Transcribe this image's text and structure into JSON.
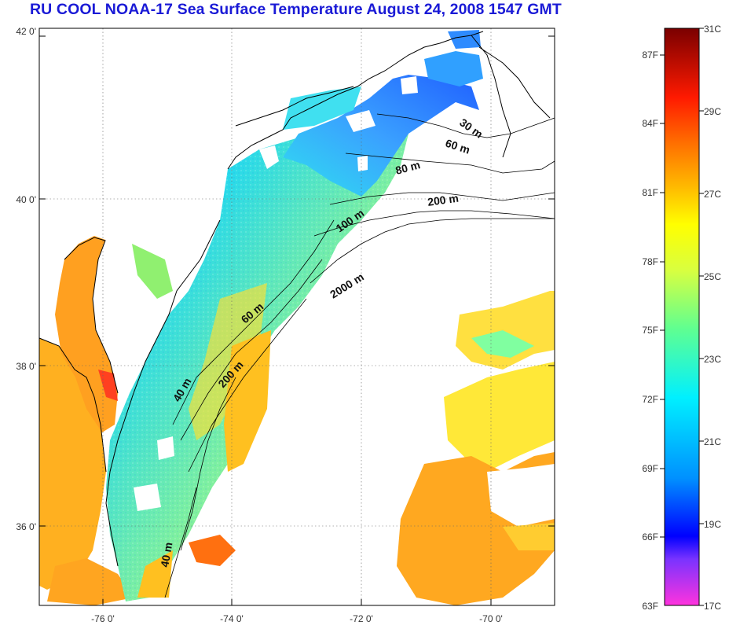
{
  "title": "RU COOL  NOAA-17 Sea Surface Temperature August 24, 2008 1547 GMT",
  "lat_labels": [
    "42 0'",
    "40 0'",
    "38 0'",
    "36 0'"
  ],
  "lon_labels": [
    "-76 0'",
    "-74 0'",
    "-72 0'",
    "-70 0'"
  ],
  "isobaths": {
    "i30": "30 m",
    "i60a": "60 m",
    "i80": "80 m",
    "i200a": "200 m",
    "i100": "100 m",
    "i2000": "2000 m",
    "i60b": "60 m",
    "i200b": "200 m",
    "i40a": "40 m",
    "i40b": "40 m"
  },
  "colorbar": {
    "c31": "31C",
    "c29": "29C",
    "c27": "27C",
    "c25": "25C",
    "c23": "23C",
    "c21": "21C",
    "c19": "19C",
    "c17": "17C",
    "f87": "87F",
    "f84": "84F",
    "f81": "81F",
    "f78": "78F",
    "f75": "75F",
    "f72": "72F",
    "f69": "69F",
    "f66": "66F",
    "f63": "63F"
  },
  "colors": {
    "title": "#1a1ad6",
    "scale": [
      "#ff33dd",
      "#0000ff",
      "#00e0ff",
      "#7fff7f",
      "#ffff00",
      "#ff8c00",
      "#ff0000",
      "#800000"
    ]
  }
}
